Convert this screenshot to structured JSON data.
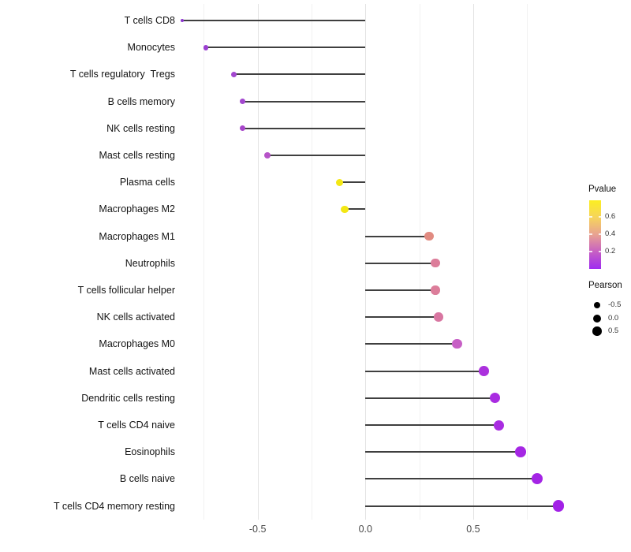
{
  "chart_data": {
    "type": "scatter",
    "variant": "lollipop",
    "title": "",
    "xlabel": "",
    "ylabel": "",
    "xlim": [
      -0.86,
      0.98
    ],
    "grid": "vertical-only",
    "categories": [
      "T cells CD8",
      "Monocytes",
      "T cells regulatory  Tregs",
      "B cells memory",
      "NK cells resting",
      "Mast cells resting",
      "Plasma cells",
      "Macrophages M2",
      "Macrophages M1",
      "Neutrophils",
      "T cells follicular helper",
      "NK cells activated",
      "Macrophages M0",
      "Mast cells activated",
      "Dendritic cells resting",
      "T cells CD4 naive",
      "Eosinophils",
      "B cells naive",
      "T cells CD4 memory resting"
    ],
    "points": [
      {
        "label": "T cells CD8",
        "pearson": -0.85,
        "dot_color": "#8d38cf",
        "dot_radius": 2.0
      },
      {
        "label": "Monocytes",
        "pearson": -0.74,
        "dot_color": "#9b3fd1",
        "dot_radius": 3.4
      },
      {
        "label": "T cells regulatory  Tregs",
        "pearson": -0.61,
        "dot_color": "#a348cf",
        "dot_radius": 3.7
      },
      {
        "label": "B cells memory",
        "pearson": -0.57,
        "dot_color": "#a348cf",
        "dot_radius": 3.7
      },
      {
        "label": "NK cells resting",
        "pearson": -0.57,
        "dot_color": "#a746ca",
        "dot_radius": 3.7
      },
      {
        "label": "Mast cells resting",
        "pearson": -0.455,
        "dot_color": "#b653c8",
        "dot_radius": 4.1
      },
      {
        "label": "Plasma cells",
        "pearson": -0.12,
        "dot_color": "#f3e714",
        "dot_radius": 4.7
      },
      {
        "label": "Macrophages M2",
        "pearson": -0.095,
        "dot_color": "#f3e714",
        "dot_radius": 4.9
      },
      {
        "label": "Macrophages M1",
        "pearson": 0.295,
        "dot_color": "#e18b81",
        "dot_radius": 5.6
      },
      {
        "label": "Neutrophils",
        "pearson": 0.325,
        "dot_color": "#dc7d9a",
        "dot_radius": 5.7
      },
      {
        "label": "T cells follicular helper",
        "pearson": 0.325,
        "dot_color": "#dc7d9a",
        "dot_radius": 5.7
      },
      {
        "label": "NK cells activated",
        "pearson": 0.34,
        "dot_color": "#d876a1",
        "dot_radius": 5.8
      },
      {
        "label": "Macrophages M0",
        "pearson": 0.425,
        "dot_color": "#c75fc5",
        "dot_radius": 6.1
      },
      {
        "label": "Mast cells activated",
        "pearson": 0.55,
        "dot_color": "#ab31dd",
        "dot_radius": 6.3
      },
      {
        "label": "Dendritic cells resting",
        "pearson": 0.6,
        "dot_color": "#a92ce1",
        "dot_radius": 6.5
      },
      {
        "label": "T cells CD4 naive",
        "pearson": 0.62,
        "dot_color": "#a92ce1",
        "dot_radius": 6.5
      },
      {
        "label": "Eosinophils",
        "pearson": 0.72,
        "dot_color": "#a527e4",
        "dot_radius": 6.8
      },
      {
        "label": "B cells naive",
        "pearson": 0.795,
        "dot_color": "#a424e5",
        "dot_radius": 7.0
      },
      {
        "label": "T cells CD4 memory resting",
        "pearson": 0.895,
        "dot_color": "#a221e6",
        "dot_radius": 7.4
      }
    ],
    "x_axis": {
      "tick_values": [
        -0.5,
        0.0,
        0.5
      ],
      "tick_labels": [
        "-0.5",
        "0.0",
        "0.5"
      ],
      "major_gridlines": [
        -0.5,
        0.0,
        0.5
      ],
      "minor_gridlines": [
        -0.75,
        -0.25,
        0.25,
        0.75
      ]
    },
    "legend": {
      "pvalue": {
        "title": "Pvalue",
        "tick_values": [
          0.6,
          0.4,
          0.2
        ],
        "tick_labels": [
          "0.6",
          "0.4",
          "0.2"
        ],
        "scale_max": 0.79,
        "scale_min": 0.0,
        "gradient_top_to_bottom": [
          "#fcee21",
          "#f6d45c",
          "#e8a292",
          "#c75fc3",
          "#9f2bf0"
        ]
      },
      "pearson": {
        "title": "Pearson",
        "items": [
          {
            "label": "-0.5",
            "radius": 4.2
          },
          {
            "label": "0.0",
            "radius": 5.0
          },
          {
            "label": "0.5",
            "radius": 5.8
          }
        ]
      }
    }
  }
}
